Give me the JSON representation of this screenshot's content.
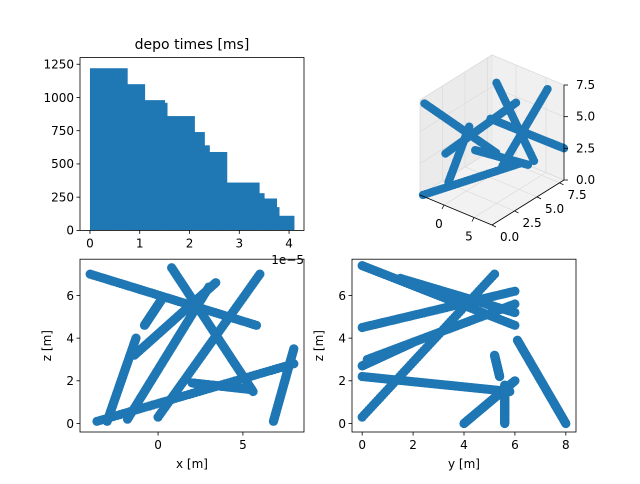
{
  "figure": {
    "background": "#ffffff",
    "accent": "#1f77b4"
  },
  "chart_data": [
    {
      "id": "hist",
      "type": "bar",
      "title": "depo times [ms]",
      "xlabel": "",
      "ylabel": "",
      "x_offset_text": "1e−5",
      "xlim": [
        -0.2,
        4.3
      ],
      "ylim": [
        0,
        1300
      ],
      "xticks": [
        0,
        1,
        2,
        3,
        4
      ],
      "yticks": [
        0,
        250,
        500,
        750,
        1000,
        1250
      ],
      "bins": [
        [
          0.0,
          0.55,
          1220
        ],
        [
          0.55,
          0.75,
          1220
        ],
        [
          0.75,
          1.1,
          1100
        ],
        [
          1.1,
          1.5,
          980
        ],
        [
          1.5,
          1.55,
          960
        ],
        [
          1.55,
          2.1,
          860
        ],
        [
          2.1,
          2.3,
          740
        ],
        [
          2.3,
          2.4,
          640
        ],
        [
          2.4,
          2.75,
          590
        ],
        [
          2.75,
          3.4,
          360
        ],
        [
          3.4,
          3.5,
          280
        ],
        [
          3.5,
          3.75,
          240
        ],
        [
          3.75,
          3.8,
          175
        ],
        [
          3.8,
          4.1,
          110
        ]
      ]
    },
    {
      "id": "scatter3d",
      "type": "scatter",
      "title": "",
      "xticks": [
        0,
        5
      ],
      "yticks": [
        0.0,
        2.5,
        5.0,
        7.5
      ],
      "zticks": [
        0.0,
        2.5,
        5.0,
        7.5
      ],
      "xlim": [
        -4,
        8
      ],
      "ylim": [
        0,
        8
      ],
      "zlim": [
        0,
        7.5
      ],
      "tracks": [
        [
          [
            -4,
            0.5,
            7.0
          ],
          [
            6,
            1.8,
            4.5
          ]
        ],
        [
          [
            0.5,
            5.5,
            7.3
          ],
          [
            6,
            6.0,
            2.0
          ]
        ],
        [
          [
            -3.5,
            0.0,
            0.1
          ],
          [
            8,
            3.0,
            3.5
          ]
        ],
        [
          [
            -2,
            4.8,
            1.8
          ],
          [
            5,
            6.0,
            1.5
          ]
        ],
        [
          [
            -3,
            2.5,
            0.1
          ],
          [
            -1.5,
            3.8,
            4.2
          ]
        ],
        [
          [
            0,
            6.5,
            0.2
          ],
          [
            6,
            7.5,
            7.0
          ]
        ],
        [
          [
            -2,
            1.5,
            3.0
          ],
          [
            3,
            6.0,
            6.0
          ]
        ],
        [
          [
            1,
            4.5,
            5.0
          ],
          [
            8,
            8.0,
            2.5
          ]
        ]
      ]
    },
    {
      "id": "xz",
      "type": "scatter",
      "title": "",
      "xlabel": "x [m]",
      "ylabel": "z [m]",
      "xlim": [
        -4.6,
        8.6
      ],
      "ylim": [
        -0.4,
        7.7
      ],
      "xticks": [
        0,
        5
      ],
      "yticks": [
        0,
        2,
        4,
        6
      ],
      "segments": [
        [
          -4.0,
          7.0,
          5.8,
          4.6
        ],
        [
          -3.6,
          0.1,
          8.0,
          2.8
        ],
        [
          -3.0,
          0.1,
          -1.3,
          4.0
        ],
        [
          -1.4,
          3.2,
          3.4,
          6.6
        ],
        [
          0.0,
          0.3,
          6.0,
          7.0
        ],
        [
          0.8,
          7.3,
          5.6,
          1.5
        ],
        [
          6.8,
          0.1,
          8.0,
          3.5
        ],
        [
          -0.8,
          4.6,
          0.2,
          5.8
        ],
        [
          2.0,
          1.9,
          5.4,
          1.6
        ],
        [
          -1.8,
          0.2,
          3.0,
          6.4
        ]
      ]
    },
    {
      "id": "yz",
      "type": "scatter",
      "title": "",
      "xlabel": "y [m]",
      "ylabel": "z [m]",
      "xlim": [
        -0.4,
        8.4
      ],
      "ylim": [
        -0.4,
        7.7
      ],
      "xticks": [
        0,
        2,
        4,
        6,
        8
      ],
      "yticks": [
        0,
        2,
        4,
        6
      ],
      "segments": [
        [
          0.0,
          7.4,
          6.0,
          4.6
        ],
        [
          0.0,
          4.5,
          6.0,
          6.2
        ],
        [
          0.0,
          2.2,
          5.8,
          1.5
        ],
        [
          0.0,
          0.3,
          5.2,
          7.0
        ],
        [
          0.0,
          2.7,
          2.0,
          3.8
        ],
        [
          0.2,
          3.0,
          6.0,
          5.6
        ],
        [
          4.0,
          0.0,
          6.0,
          2.0
        ],
        [
          5.6,
          0.0,
          5.6,
          1.8
        ],
        [
          5.4,
          2.2,
          5.2,
          3.2
        ],
        [
          6.1,
          3.9,
          8.0,
          0.0
        ],
        [
          1.5,
          6.8,
          6.0,
          5.2
        ]
      ]
    }
  ]
}
